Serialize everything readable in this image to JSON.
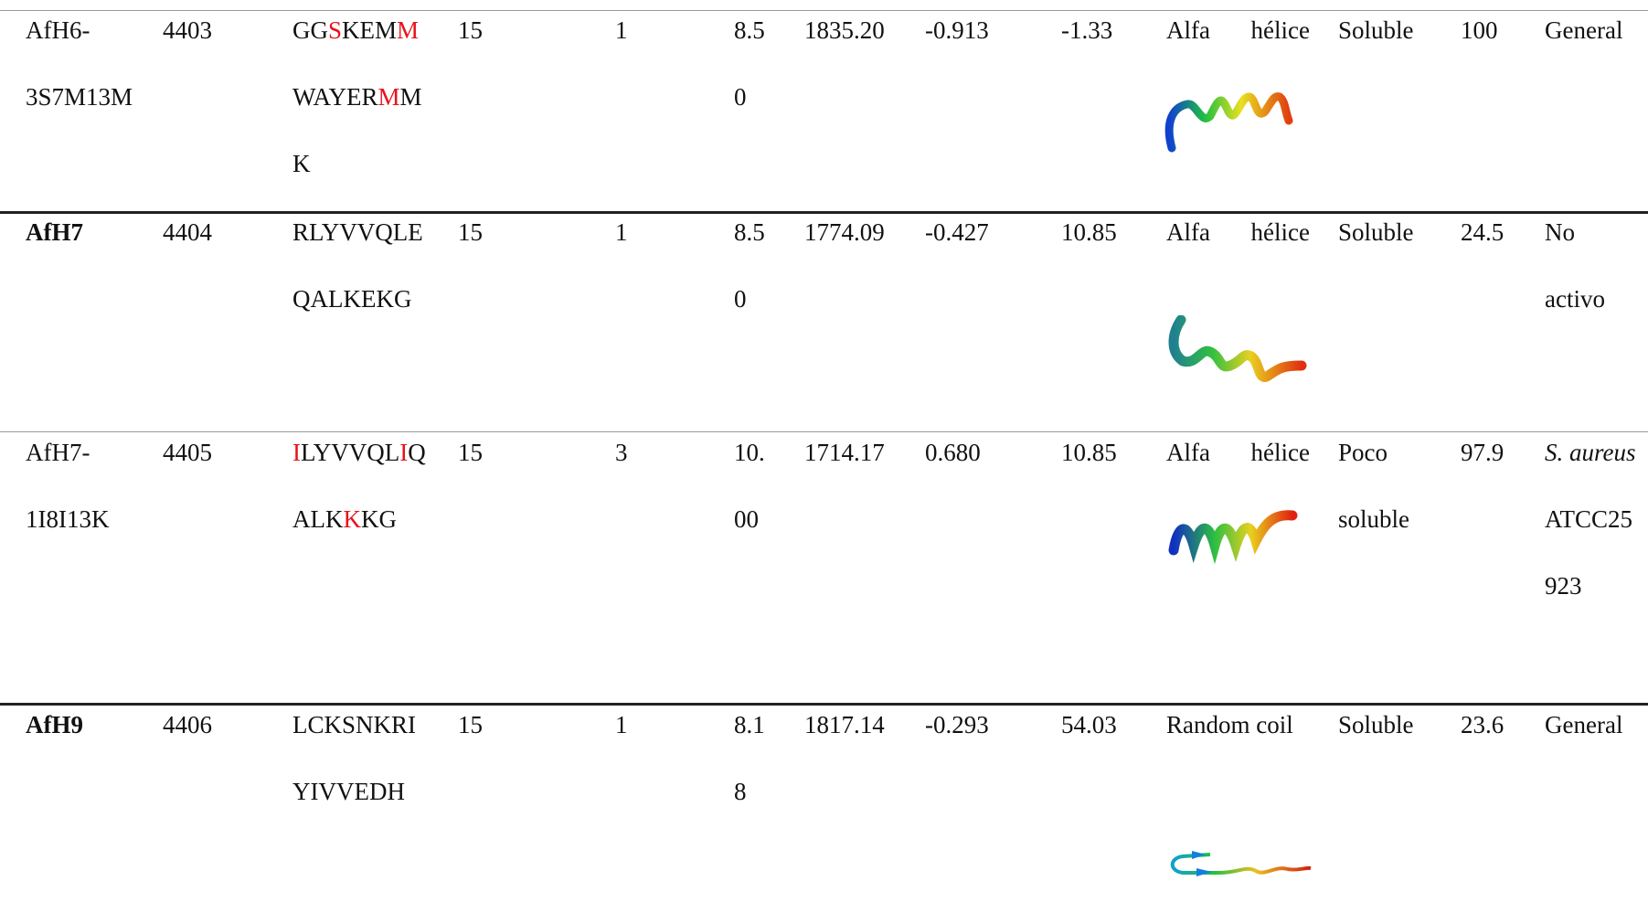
{
  "table": {
    "rows": [
      {
        "name": "AfH6-3S7M13M",
        "bold": false,
        "id": "4403",
        "sequence": [
          {
            "text": "GG"
          },
          {
            "text": "S",
            "mutated": true
          },
          {
            "text": "KEM"
          },
          {
            "text": "M",
            "mutated": true
          },
          {
            "text": "WAYER"
          },
          {
            "text": "M",
            "mutated": true
          },
          {
            "text": "MK"
          }
        ],
        "length": "15",
        "charge": "1",
        "ph": "8.50",
        "mass": "1835.20",
        "hydrophobicity": "-0.913",
        "instability": "-1.33",
        "structure": "Alfa hélice",
        "solubility": "Soluble",
        "percent": "100",
        "activity": {
          "text": "General"
        }
      },
      {
        "name": "AfH7",
        "bold": true,
        "id": "4404",
        "sequence": [
          {
            "text": "RLYVVQLEQALKEKG"
          }
        ],
        "length": "15",
        "charge": "1",
        "ph": "8.50",
        "mass": "1774.09",
        "hydrophobicity": "-0.427",
        "instability": "10.85",
        "structure": "Alfa hélice",
        "solubility": "Soluble",
        "percent": "24.5",
        "activity": {
          "text": "No activo"
        }
      },
      {
        "name": "AfH7-1I8I13K",
        "bold": false,
        "id": "4405",
        "sequence": [
          {
            "text": "I",
            "mutated": true
          },
          {
            "text": "LYVVQL"
          },
          {
            "text": "I",
            "mutated": true
          },
          {
            "text": "QALK"
          },
          {
            "text": "K",
            "mutated": true
          },
          {
            "text": "KG"
          }
        ],
        "length": "15",
        "charge": "3",
        "ph": "10.00",
        "mass": "1714.17",
        "hydrophobicity": "0.680",
        "instability": "10.85",
        "structure": "Alfa hélice",
        "solubility": "Poco soluble",
        "percent": "97.9",
        "activity": {
          "species": "S. aureus",
          "text": "ATCC25923"
        }
      },
      {
        "name": "AfH9",
        "bold": true,
        "id": "4406",
        "sequence": [
          {
            "text": "LCKSNKRIYIVVEDH"
          }
        ],
        "length": "15",
        "charge": "1",
        "ph": "8.18",
        "mass": "1817.14",
        "hydrophobicity": "-0.293",
        "instability": "54.03",
        "structure": "Random coil",
        "solubility": "Soluble",
        "percent": "23.6",
        "activity": {
          "text": "General"
        }
      }
    ]
  }
}
